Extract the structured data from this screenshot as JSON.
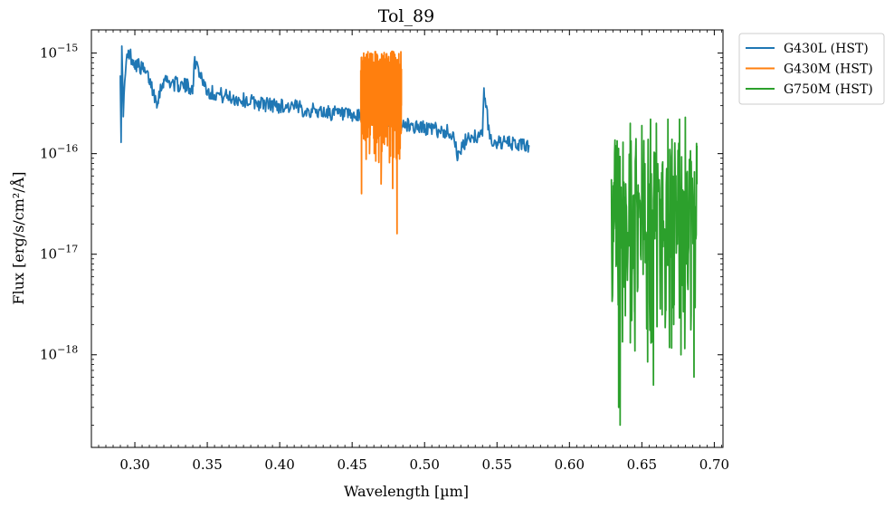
{
  "chart_data": {
    "type": "line",
    "title": "Tol_89",
    "xlabel": "Wavelength [µm]",
    "ylabel": "Flux [erg/s/cm²/Å]",
    "yscale": "log",
    "xlim": [
      0.27,
      0.706
    ],
    "ylim": [
      1.2e-19,
      1.7e-15
    ],
    "x_ticks": [
      0.3,
      0.35,
      0.4,
      0.45,
      0.5,
      0.55,
      0.6,
      0.65,
      0.7
    ],
    "x_tick_labels": [
      "0.30",
      "0.35",
      "0.40",
      "0.45",
      "0.50",
      "0.55",
      "0.60",
      "0.65",
      "0.70"
    ],
    "y_ticks": [
      {
        "value": 1e-15,
        "base": "10",
        "exp": "−15"
      },
      {
        "value": 1e-16,
        "base": "10",
        "exp": "−16"
      },
      {
        "value": 1e-17,
        "base": "10",
        "exp": "−17"
      },
      {
        "value": 1e-18,
        "base": "10",
        "exp": "−18"
      }
    ],
    "grid": false,
    "legend_position": "outside top-right",
    "series": [
      {
        "name": "G430L (HST)",
        "color": "#1f77b4",
        "x_range": [
          0.29,
          0.572
        ],
        "points": [
          [
            0.29,
            6e-16
          ],
          [
            0.2905,
            1.4e-16
          ],
          [
            0.291,
            1.05e-15
          ],
          [
            0.292,
            2.7e-16
          ],
          [
            0.294,
            8e-16
          ],
          [
            0.296,
            1e-15
          ],
          [
            0.3,
            8e-16
          ],
          [
            0.305,
            7e-16
          ],
          [
            0.31,
            5.5e-16
          ],
          [
            0.315,
            3.3e-16
          ],
          [
            0.32,
            5.5e-16
          ],
          [
            0.33,
            4.8e-16
          ],
          [
            0.34,
            4.6e-16
          ],
          [
            0.3415,
            8.5e-16
          ],
          [
            0.35,
            4.2e-16
          ],
          [
            0.36,
            3.8e-16
          ],
          [
            0.37,
            3.5e-16
          ],
          [
            0.38,
            3.3e-16
          ],
          [
            0.39,
            3.1e-16
          ],
          [
            0.4,
            3e-16
          ],
          [
            0.41,
            2.9e-16
          ],
          [
            0.42,
            2.7e-16
          ],
          [
            0.43,
            2.6e-16
          ],
          [
            0.44,
            2.5e-16
          ],
          [
            0.45,
            2.3e-16
          ],
          [
            0.455,
            2.3e-16
          ],
          [
            0.47,
            2.2e-16
          ],
          [
            0.48,
            2e-16
          ],
          [
            0.49,
            1.9e-16
          ],
          [
            0.5,
            1.8e-16
          ],
          [
            0.51,
            1.7e-16
          ],
          [
            0.52,
            1.6e-16
          ],
          [
            0.523,
            9e-17
          ],
          [
            0.53,
            1.5e-16
          ],
          [
            0.54,
            1.5e-16
          ],
          [
            0.541,
            4.5e-16
          ],
          [
            0.545,
            1.4e-16
          ],
          [
            0.55,
            1.3e-16
          ],
          [
            0.56,
            1.25e-16
          ],
          [
            0.57,
            1.2e-16
          ],
          [
            0.572,
            1.2e-16
          ]
        ]
      },
      {
        "name": "G430M (HST)",
        "color": "#ff7f0e",
        "x_range": [
          0.456,
          0.484
        ],
        "points": [
          [
            0.456,
            3.5e-16
          ],
          [
            0.4565,
            4e-17
          ],
          [
            0.458,
            1e-15
          ],
          [
            0.462,
            1e-16
          ],
          [
            0.466,
            9.5e-16
          ],
          [
            0.47,
            5e-17
          ],
          [
            0.474,
            9e-16
          ],
          [
            0.478,
            4.5e-17
          ],
          [
            0.48,
            9e-16
          ],
          [
            0.481,
            1.6e-17
          ],
          [
            0.482,
            1e-16
          ],
          [
            0.484,
            3e-16
          ]
        ]
      },
      {
        "name": "G750M (HST)",
        "color": "#2ca02c",
        "x_range": [
          0.629,
          0.688
        ],
        "points": [
          [
            0.629,
            5.5e-17
          ],
          [
            0.63,
            8.5e-18
          ],
          [
            0.632,
            1.2e-16
          ],
          [
            0.634,
            3e-19
          ],
          [
            0.635,
            2e-19
          ],
          [
            0.637,
            1.3e-16
          ],
          [
            0.64,
            5.5e-18
          ],
          [
            0.642,
            2e-16
          ],
          [
            0.645,
            3.5e-18
          ],
          [
            0.65,
            1.9e-16
          ],
          [
            0.654,
            8.5e-19
          ],
          [
            0.656,
            2.2e-16
          ],
          [
            0.658,
            5e-19
          ],
          [
            0.66,
            2e-16
          ],
          [
            0.664,
            2.5e-18
          ],
          [
            0.668,
            2.2e-16
          ],
          [
            0.672,
            2e-18
          ],
          [
            0.676,
            2.2e-16
          ],
          [
            0.677,
            1e-18
          ],
          [
            0.68,
            2.3e-16
          ],
          [
            0.684,
            2.5e-18
          ],
          [
            0.686,
            6e-19
          ],
          [
            0.688,
            1.2e-16
          ]
        ]
      }
    ]
  }
}
